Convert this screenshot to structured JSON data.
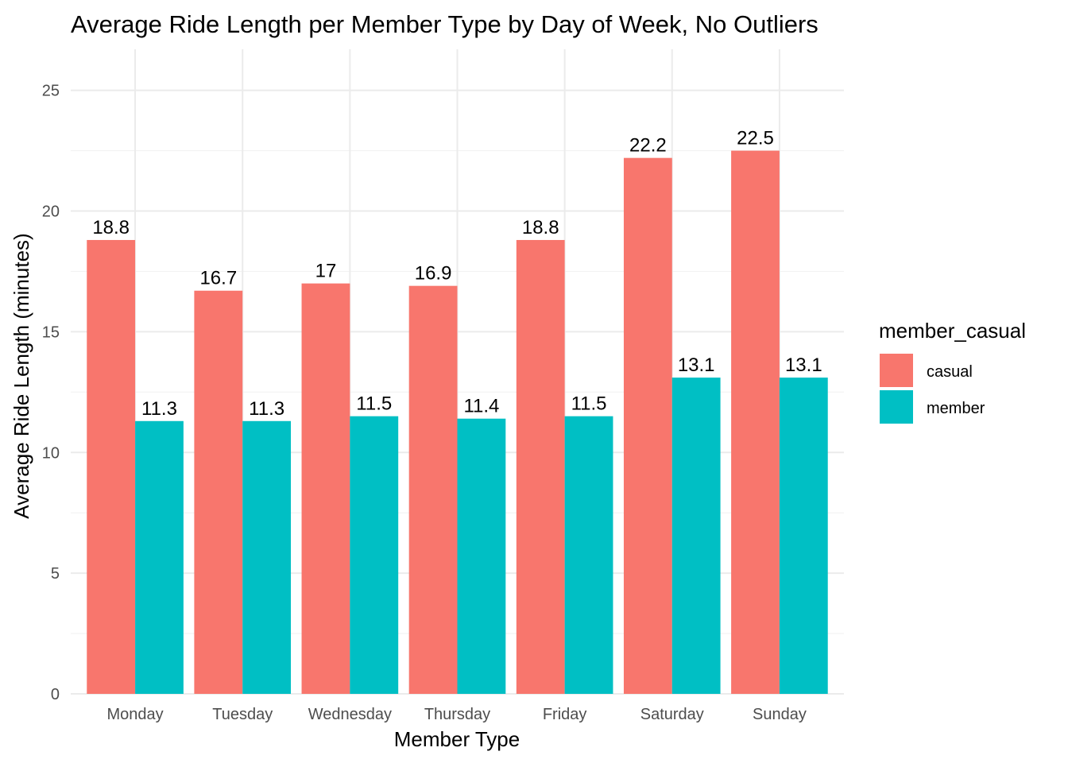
{
  "chart_data": {
    "type": "bar",
    "title": "Average Ride Length per Member Type by Day of Week, No Outliers",
    "xlabel": "Member Type",
    "ylabel": "Average Ride Length (minutes)",
    "categories": [
      "Monday",
      "Tuesday",
      "Wednesday",
      "Thursday",
      "Friday",
      "Saturday",
      "Sunday"
    ],
    "series": [
      {
        "name": "casual",
        "color": "#F8766D",
        "values": [
          18.8,
          16.7,
          17.0,
          16.9,
          18.8,
          22.2,
          22.5
        ],
        "labels": [
          "18.8",
          "16.7",
          "17",
          "16.9",
          "18.8",
          "22.2",
          "22.5"
        ]
      },
      {
        "name": "member",
        "color": "#00BFC4",
        "values": [
          11.3,
          11.3,
          11.5,
          11.4,
          11.5,
          13.1,
          13.1
        ],
        "labels": [
          "11.3",
          "11.3",
          "11.5",
          "11.4",
          "11.5",
          "13.1",
          "13.1"
        ]
      }
    ],
    "ylim": [
      0,
      26.7
    ],
    "yticks": [
      0,
      5,
      10,
      15,
      20,
      25
    ],
    "grid": true,
    "legend": {
      "title": "member_casual",
      "position": "right"
    }
  }
}
